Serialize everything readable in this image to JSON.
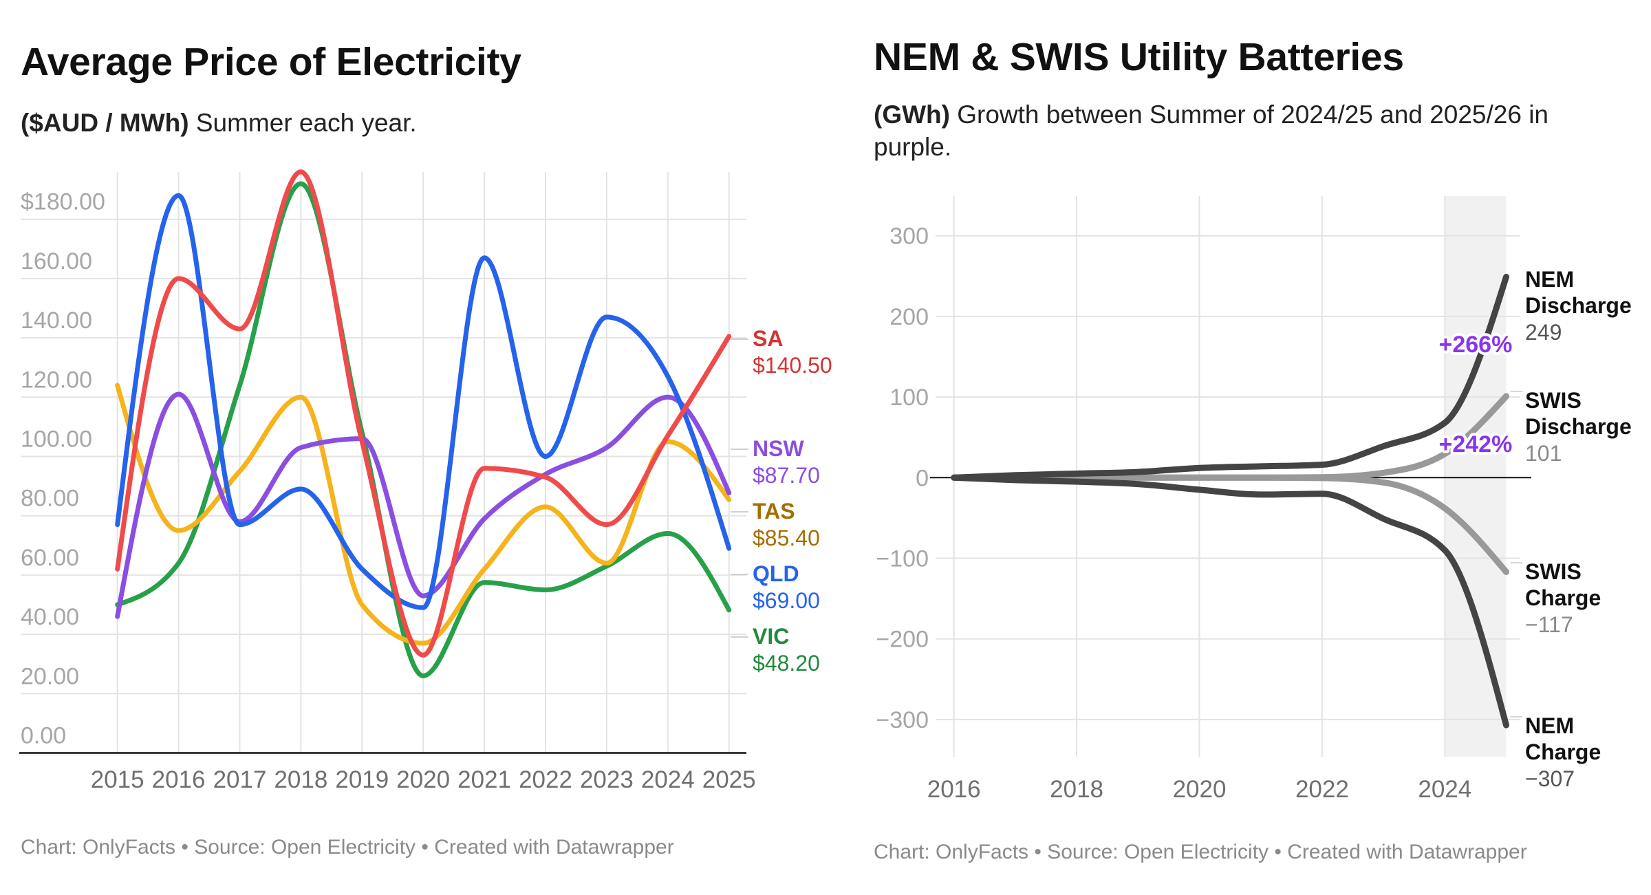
{
  "chart_data": [
    {
      "type": "line",
      "title": "Average Price of Electricity",
      "subtitle_bold": "($AUD / MWh)",
      "subtitle": " Summer each year.",
      "xlabel": "",
      "ylabel": "$AUD / MWh",
      "x": [
        2015,
        2016,
        2017,
        2018,
        2019,
        2020,
        2021,
        2022,
        2023,
        2024,
        2025
      ],
      "ylim": [
        0,
        190
      ],
      "yticks": [
        0,
        20,
        40,
        60,
        80,
        100,
        120,
        140,
        160,
        180
      ],
      "ytick_labels": [
        "0.00",
        "20.00",
        "40.00",
        "60.00",
        "80.00",
        "100.00",
        "120.00",
        "140.00",
        "160.00",
        "$180.00"
      ],
      "grid": true,
      "interpolation": "smooth-monotone",
      "series": [
        {
          "name": "SA",
          "end_label": "$140.50",
          "color": "#ef4b4b",
          "label_color": "#d63333",
          "values": [
            62,
            160,
            143,
            196,
            105,
            33,
            96,
            93,
            77,
            107,
            140.5
          ]
        },
        {
          "name": "NSW",
          "end_label": "$87.70",
          "color": "#8a4fe0",
          "label_color": "#8a4fe0",
          "values": [
            46,
            121,
            78,
            103,
            106,
            53,
            79,
            94,
            103,
            120,
            87.7
          ]
        },
        {
          "name": "TAS",
          "end_label": "$85.40",
          "color": "#f5b31c",
          "label_color": "#a56e00",
          "values": [
            124,
            75,
            95,
            120,
            50,
            37,
            62,
            83,
            64,
            105,
            85.4
          ]
        },
        {
          "name": "QLD",
          "end_label": "$69.00",
          "color": "#2563eb",
          "label_color": "#2563eb",
          "values": [
            77,
            188,
            77,
            89,
            62,
            49,
            167,
            100,
            147,
            127,
            69.0
          ]
        },
        {
          "name": "VIC",
          "end_label": "$48.20",
          "color": "#27a04a",
          "label_color": "#228a3e",
          "values": [
            50,
            64,
            124,
            192,
            108,
            26,
            57.5,
            55,
            63,
            74,
            48.2
          ]
        }
      ],
      "footer": "Chart: OnlyFacts • Source: Open Electricity • Created with Datawrapper"
    },
    {
      "type": "line",
      "title": "NEM & SWIS Utility Batteries",
      "subtitle_bold": "(GWh)",
      "subtitle": " Growth between Summer of 2024/25 and 2025/26 in purple.",
      "xlabel": "",
      "ylabel": "GWh",
      "x": [
        2016,
        2017,
        2018,
        2019,
        2020,
        2021,
        2022,
        2023,
        2024,
        2025
      ],
      "xticks": [
        2016,
        2018,
        2020,
        2022,
        2024
      ],
      "ylim": [
        -340,
        345
      ],
      "yticks": [
        300,
        200,
        100,
        0,
        -100,
        -200,
        -300
      ],
      "ytick_labels": [
        "300",
        "200",
        "100",
        "0",
        "−100",
        "−200",
        "−300"
      ],
      "grid": true,
      "highlight_range": [
        2024,
        2025
      ],
      "highlight_color": "#f1f1f1",
      "series": [
        {
          "name_line1": "NEM",
          "name_line2": "Discharge",
          "end_label": "249",
          "color": "#444444",
          "values": [
            0,
            3,
            5,
            7,
            12,
            14,
            16,
            39,
            68,
            249
          ]
        },
        {
          "name_line1": "SWIS",
          "name_line2": "Discharge",
          "end_label": "101",
          "color": "#999999",
          "values": [
            0,
            0,
            0,
            0,
            0,
            0,
            0.5,
            6,
            29.5,
            101
          ]
        },
        {
          "name_line1": "SWIS",
          "name_line2": "Charge",
          "end_label": "−117",
          "color": "#999999",
          "values": [
            0,
            0,
            0,
            0,
            0,
            0,
            -0.5,
            -6,
            -38,
            -117
          ]
        },
        {
          "name_line1": "NEM",
          "name_line2": "Charge",
          "end_label": "−307",
          "color": "#444444",
          "values": [
            0,
            -3,
            -5,
            -8,
            -15,
            -21,
            -20,
            -51,
            -90,
            -307
          ]
        }
      ],
      "annotations": [
        {
          "text": "+266%",
          "series": "NEM Discharge",
          "color": "#8a35ea"
        },
        {
          "text": "+242%",
          "series": "SWIS Discharge",
          "color": "#8a35ea"
        }
      ],
      "footer": "Chart: OnlyFacts • Source: Open Electricity • Created with Datawrapper"
    }
  ]
}
